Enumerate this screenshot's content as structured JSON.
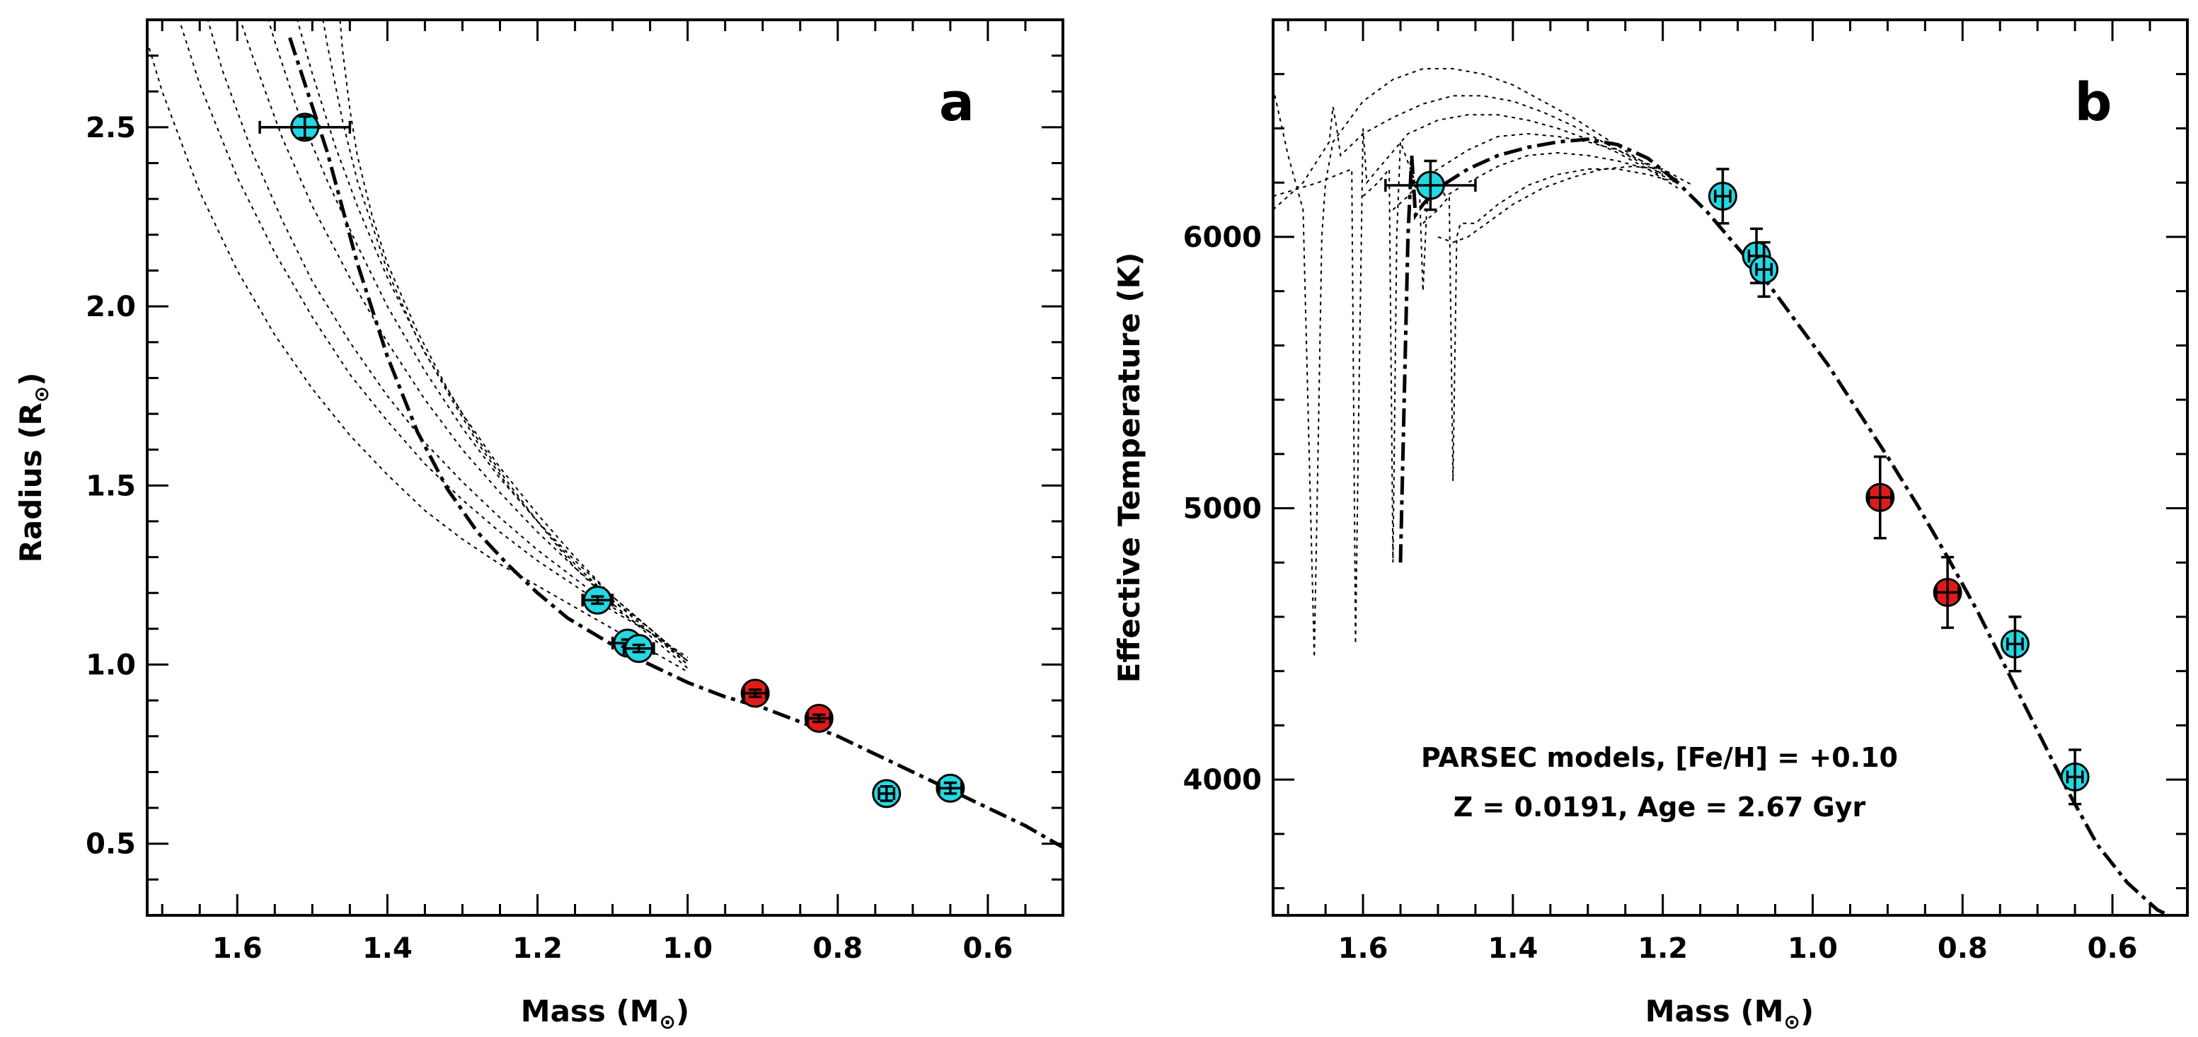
{
  "chart_data": [
    {
      "type": "scatter",
      "panel_label": "a",
      "xlabel": "Mass (M",
      "xlabel_sub": "⊙",
      "xlabel_end": ")",
      "ylabel": "Radius (R",
      "ylabel_sub": "⊙",
      "ylabel_end": ")",
      "xlim": [
        1.72,
        0.5
      ],
      "ylim": [
        0.3,
        2.8
      ],
      "x_ticks": [
        1.6,
        1.4,
        1.2,
        1.0,
        0.8,
        0.6
      ],
      "x_tick_labels": [
        "1.6",
        "1.4",
        "1.2",
        "1.0",
        "0.8",
        "0.6"
      ],
      "y_ticks": [
        0.5,
        1.0,
        1.5,
        2.0,
        2.5
      ],
      "y_tick_labels": [
        "0.5",
        "1.0",
        "1.5",
        "2.0",
        "2.5"
      ],
      "points": [
        {
          "x": 1.51,
          "y": 2.5,
          "xerr": 0.06,
          "yerr": 0.03,
          "color": "#22d8e2"
        },
        {
          "x": 1.12,
          "y": 1.18,
          "xerr": 0.02,
          "yerr": 0.01,
          "color": "#22d8e2"
        },
        {
          "x": 1.08,
          "y": 1.06,
          "xerr": 0.02,
          "yerr": 0.01,
          "color": "#22d8e2"
        },
        {
          "x": 1.065,
          "y": 1.045,
          "xerr": 0.02,
          "yerr": 0.01,
          "color": "#22d8e2"
        },
        {
          "x": 0.91,
          "y": 0.92,
          "xerr": 0.015,
          "yerr": 0.01,
          "color": "#e01a1a"
        },
        {
          "x": 0.825,
          "y": 0.85,
          "xerr": 0.015,
          "yerr": 0.01,
          "color": "#e01a1a"
        },
        {
          "x": 0.735,
          "y": 0.64,
          "xerr": 0.01,
          "yerr": 0.02,
          "color": "#22d8e2"
        },
        {
          "x": 0.65,
          "y": 0.655,
          "xerr": 0.015,
          "yerr": 0.015,
          "color": "#22d8e2"
        }
      ],
      "best_fit": {
        "x": [
          1.53,
          1.48,
          1.44,
          1.4,
          1.36,
          1.32,
          1.28,
          1.24,
          1.2,
          1.16,
          1.12,
          1.08,
          1.04,
          1.0,
          0.95,
          0.9,
          0.85,
          0.8,
          0.75,
          0.7,
          0.65,
          0.6,
          0.55,
          0.5
        ],
        "y": [
          2.75,
          2.43,
          2.12,
          1.86,
          1.65,
          1.49,
          1.37,
          1.28,
          1.2,
          1.13,
          1.08,
          1.03,
          0.99,
          0.95,
          0.91,
          0.88,
          0.84,
          0.8,
          0.75,
          0.7,
          0.65,
          0.6,
          0.55,
          0.49
        ]
      },
      "isochrones": [
        {
          "x": [
            1.75,
            1.7,
            1.65,
            1.6,
            1.55,
            1.5,
            1.45,
            1.4,
            1.35,
            1.3,
            1.25,
            1.2,
            1.15,
            1.1,
            1.05,
            1.0
          ],
          "y": [
            2.95,
            2.6,
            2.32,
            2.1,
            1.92,
            1.77,
            1.64,
            1.53,
            1.43,
            1.35,
            1.28,
            1.22,
            1.16,
            1.1,
            1.04,
            0.98
          ]
        },
        {
          "x": [
            1.7,
            1.65,
            1.6,
            1.55,
            1.5,
            1.45,
            1.4,
            1.35,
            1.3,
            1.25,
            1.2,
            1.15,
            1.1,
            1.05,
            1.0
          ],
          "y": [
            2.95,
            2.62,
            2.36,
            2.15,
            1.97,
            1.81,
            1.68,
            1.56,
            1.46,
            1.37,
            1.29,
            1.22,
            1.15,
            1.09,
            1.02
          ]
        },
        {
          "x": [
            1.66,
            1.62,
            1.58,
            1.54,
            1.5,
            1.45,
            1.4,
            1.35,
            1.3,
            1.25,
            1.2,
            1.15,
            1.1,
            1.05,
            1.0
          ],
          "y": [
            2.95,
            2.66,
            2.43,
            2.24,
            2.07,
            1.9,
            1.75,
            1.62,
            1.51,
            1.41,
            1.32,
            1.24,
            1.16,
            1.09,
            1.01
          ]
        },
        {
          "x": [
            1.62,
            1.58,
            1.54,
            1.5,
            1.45,
            1.4,
            1.35,
            1.3,
            1.25,
            1.2,
            1.15,
            1.1,
            1.05,
            1.0
          ],
          "y": [
            2.95,
            2.7,
            2.47,
            2.28,
            2.08,
            1.9,
            1.74,
            1.6,
            1.48,
            1.37,
            1.27,
            1.18,
            1.1,
            1.01
          ]
        },
        {
          "x": [
            1.58,
            1.55,
            1.52,
            1.48,
            1.44,
            1.4,
            1.35,
            1.3,
            1.25,
            1.2,
            1.15,
            1.1,
            1.05,
            1.0
          ],
          "y": [
            2.95,
            2.74,
            2.55,
            2.35,
            2.17,
            2.0,
            1.82,
            1.66,
            1.52,
            1.4,
            1.29,
            1.19,
            1.1,
            1.01
          ]
        },
        {
          "x": [
            1.54,
            1.52,
            1.5,
            1.47,
            1.44,
            1.4,
            1.35,
            1.3,
            1.25,
            1.2,
            1.15,
            1.1,
            1.05,
            1.0
          ],
          "y": [
            2.95,
            2.8,
            2.65,
            2.45,
            2.28,
            2.08,
            1.87,
            1.7,
            1.55,
            1.42,
            1.3,
            1.19,
            1.1,
            1.0
          ]
        },
        {
          "x": [
            1.5,
            1.49,
            1.48,
            1.46,
            1.44,
            1.4,
            1.36,
            1.32,
            1.28,
            1.24,
            1.2,
            1.15,
            1.1,
            1.05,
            1.0
          ],
          "y": [
            2.95,
            2.85,
            2.73,
            2.52,
            2.35,
            2.1,
            1.91,
            1.76,
            1.62,
            1.5,
            1.4,
            1.28,
            1.18,
            1.09,
            1.0
          ]
        },
        {
          "x": [
            1.47,
            1.465,
            1.46,
            1.45,
            1.44,
            1.42,
            1.4,
            1.36,
            1.32,
            1.28,
            1.24,
            1.2,
            1.15,
            1.1,
            1.05,
            1.0
          ],
          "y": [
            2.95,
            2.85,
            2.72,
            2.55,
            2.42,
            2.25,
            2.12,
            1.93,
            1.77,
            1.63,
            1.51,
            1.4,
            1.27,
            1.17,
            1.08,
            0.99
          ]
        }
      ]
    },
    {
      "type": "scatter",
      "panel_label": "b",
      "xlabel": "Mass (M",
      "xlabel_sub": "⊙",
      "xlabel_end": ")",
      "ylabel": "Effective Temperature (K)",
      "xlim": [
        1.72,
        0.5
      ],
      "ylim": [
        3500,
        6800
      ],
      "x_ticks": [
        1.6,
        1.4,
        1.2,
        1.0,
        0.8,
        0.6
      ],
      "x_tick_labels": [
        "1.6",
        "1.4",
        "1.2",
        "1.0",
        "0.8",
        "0.6"
      ],
      "y_ticks": [
        4000,
        5000,
        6000
      ],
      "y_tick_labels": [
        "4000",
        "5000",
        "6000"
      ],
      "annotation": [
        "PARSEC models, [Fe/H] = +0.10",
        "Z = 0.0191, Age = 2.67 Gyr"
      ],
      "points": [
        {
          "x": 1.51,
          "y": 6190,
          "xerr": 0.06,
          "yerr": 90,
          "color": "#22d8e2"
        },
        {
          "x": 1.12,
          "y": 6150,
          "xerr": 0.01,
          "yerr": 100,
          "color": "#22d8e2"
        },
        {
          "x": 1.075,
          "y": 5930,
          "xerr": 0.01,
          "yerr": 100,
          "color": "#22d8e2"
        },
        {
          "x": 1.065,
          "y": 5880,
          "xerr": 0.01,
          "yerr": 100,
          "color": "#22d8e2"
        },
        {
          "x": 0.91,
          "y": 5040,
          "xerr": 0.015,
          "yerr": 150,
          "color": "#e01a1a"
        },
        {
          "x": 0.82,
          "y": 4690,
          "xerr": 0.015,
          "yerr": 130,
          "color": "#e01a1a"
        },
        {
          "x": 0.73,
          "y": 4500,
          "xerr": 0.01,
          "yerr": 100,
          "color": "#22d8e2"
        },
        {
          "x": 0.65,
          "y": 4010,
          "xerr": 0.01,
          "yerr": 100,
          "color": "#22d8e2"
        }
      ],
      "best_fit": {
        "x": [
          1.55,
          1.545,
          1.54,
          1.535,
          1.53,
          1.52,
          1.5,
          1.46,
          1.42,
          1.38,
          1.34,
          1.3,
          1.26,
          1.22,
          1.18,
          1.14,
          1.1,
          1.06,
          1.02,
          0.98,
          0.94,
          0.9,
          0.86,
          0.82,
          0.78,
          0.74,
          0.7,
          0.66,
          0.62,
          0.58,
          0.54,
          0.51
        ],
        "y": [
          4800,
          5400,
          6000,
          6300,
          6080,
          6120,
          6180,
          6250,
          6300,
          6330,
          6350,
          6360,
          6340,
          6290,
          6200,
          6090,
          5960,
          5830,
          5680,
          5530,
          5360,
          5190,
          5010,
          4820,
          4620,
          4400,
          4180,
          3960,
          3760,
          3620,
          3520,
          3480
        ]
      },
      "isochrones": [
        {
          "x": [
            1.72,
            1.7,
            1.68,
            1.665,
            1.66,
            1.655,
            1.65,
            1.64,
            1.6,
            1.56,
            1.52,
            1.48,
            1.44,
            1.4,
            1.36,
            1.32,
            1.28,
            1.24,
            1.2
          ],
          "y": [
            6550,
            6300,
            6100,
            4450,
            5200,
            6000,
            6200,
            6350,
            6500,
            6580,
            6620,
            6620,
            6600,
            6560,
            6500,
            6440,
            6370,
            6300,
            6230
          ]
        },
        {
          "x": [
            1.72,
            1.68,
            1.645,
            1.64,
            1.635,
            1.63,
            1.6,
            1.56,
            1.52,
            1.48,
            1.44,
            1.4,
            1.36,
            1.32,
            1.28,
            1.24,
            1.2
          ],
          "y": [
            6100,
            6200,
            6350,
            6480,
            6400,
            6300,
            6380,
            6440,
            6490,
            6520,
            6520,
            6500,
            6460,
            6410,
            6350,
            6290,
            6230
          ]
        },
        {
          "x": [
            1.72,
            1.66,
            1.615,
            1.61,
            1.605,
            1.6,
            1.595,
            1.58,
            1.54,
            1.5,
            1.46,
            1.42,
            1.38,
            1.34,
            1.3,
            1.26,
            1.22,
            1.18
          ],
          "y": [
            6150,
            6200,
            6250,
            4500,
            5500,
            6400,
            6200,
            6250,
            6380,
            6430,
            6450,
            6450,
            6430,
            6400,
            6360,
            6310,
            6250,
            6180
          ]
        },
        {
          "x": [
            1.6,
            1.58,
            1.565,
            1.56,
            1.555,
            1.55,
            1.53,
            1.5,
            1.46,
            1.42,
            1.38,
            1.34,
            1.3,
            1.26,
            1.22,
            1.18
          ],
          "y": [
            6150,
            6200,
            6250,
            4800,
            6000,
            6350,
            6200,
            6250,
            6320,
            6370,
            6380,
            6370,
            6350,
            6320,
            6270,
            6210
          ]
        },
        {
          "x": [
            1.56,
            1.54,
            1.525,
            1.52,
            1.515,
            1.51,
            1.49,
            1.46,
            1.42,
            1.38,
            1.34,
            1.3,
            1.26,
            1.22,
            1.18
          ],
          "y": [
            6100,
            6150,
            6200,
            5800,
            6100,
            6250,
            6150,
            6200,
            6260,
            6300,
            6310,
            6300,
            6280,
            6250,
            6200
          ]
        },
        {
          "x": [
            1.52,
            1.5,
            1.485,
            1.48,
            1.475,
            1.47,
            1.45,
            1.42,
            1.38,
            1.34,
            1.3,
            1.26,
            1.22,
            1.18
          ],
          "y": [
            6050,
            6100,
            6150,
            5100,
            6000,
            6050,
            6050,
            6120,
            6190,
            6230,
            6250,
            6250,
            6230,
            6200
          ]
        },
        {
          "x": [
            1.5,
            1.48,
            1.46,
            1.43,
            1.4,
            1.36,
            1.32,
            1.28,
            1.24,
            1.2,
            1.16
          ],
          "y": [
            6000,
            5980,
            6000,
            6060,
            6120,
            6180,
            6220,
            6250,
            6260,
            6250,
            6190
          ]
        }
      ]
    }
  ]
}
